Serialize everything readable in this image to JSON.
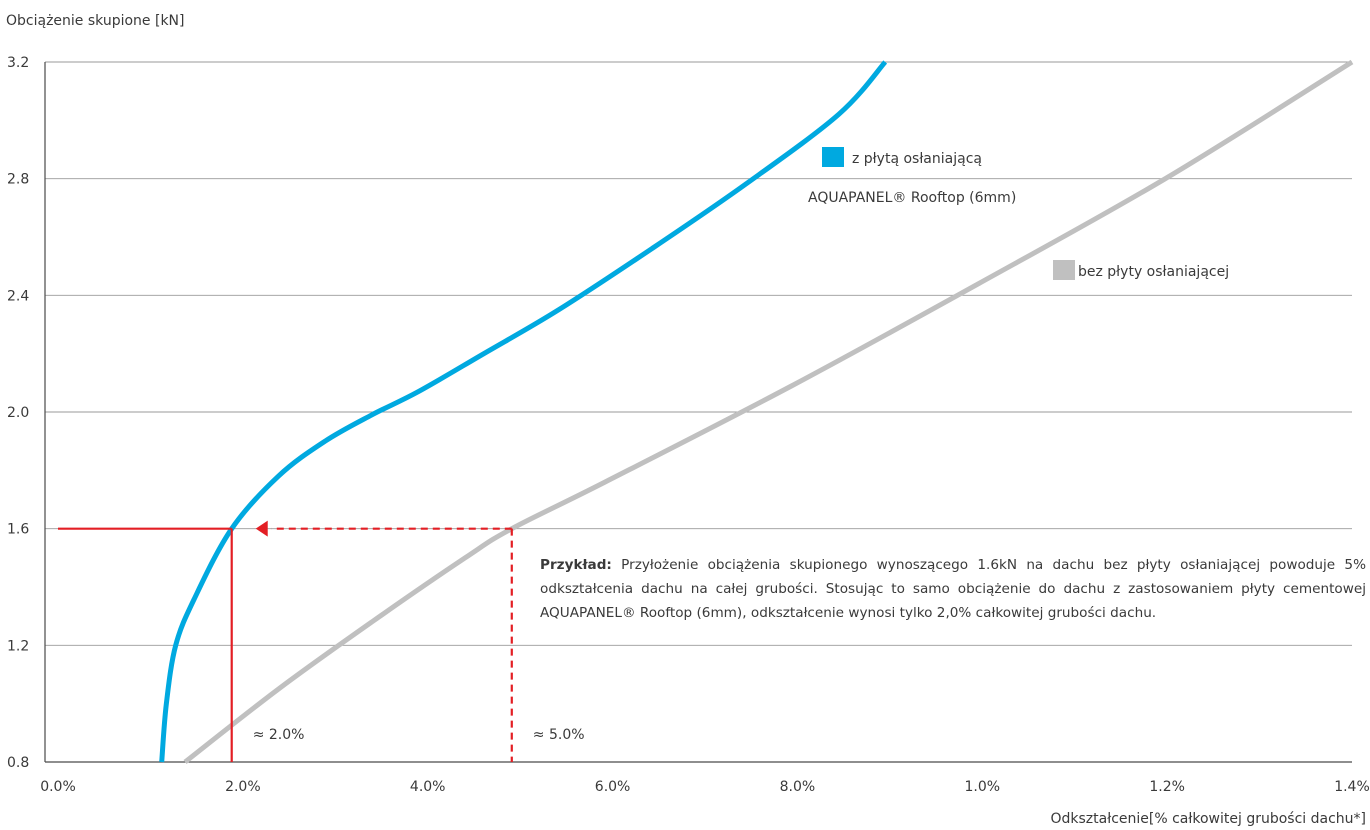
{
  "chart_data": {
    "type": "line",
    "ylabel": "Obciążenie skupione [kN]",
    "xlabel": "Odkształcenie[% całkowitej grubości dachu*]",
    "xticks": [
      "0.0%",
      "2.0%",
      "4.0%",
      "6.0%",
      "8.0%",
      "1.0%",
      "1.2%",
      "1.4%"
    ],
    "yticks": [
      "0.8",
      "1.2",
      "1.6",
      "2.0",
      "2.4",
      "2.8",
      "3.2"
    ],
    "ylim": [
      0.8,
      3.2
    ],
    "xlim": [
      0,
      14
    ],
    "grid": "horizontal",
    "series": [
      {
        "name": "z płytą osłaniającą",
        "name_line2": "AQUAPANEL® Rooftop (6mm)",
        "color": "#00a9e0",
        "x": [
          1.25,
          1.3,
          1.4,
          1.6,
          2.0,
          2.5,
          3.0,
          3.5,
          4.0,
          4.7,
          5.5,
          6.5,
          7.5,
          8.5,
          9.0
        ],
        "y": [
          0.8,
          1.0,
          1.2,
          1.36,
          1.6,
          1.78,
          1.9,
          1.99,
          2.07,
          2.2,
          2.35,
          2.56,
          2.78,
          3.02,
          3.2
        ]
      },
      {
        "name": "bez płyty osłaniającej",
        "color": "#c0c0c0",
        "x": [
          1.5,
          2.5,
          3.5,
          4.5,
          5.0,
          6.0,
          8.0,
          10.0,
          12.0,
          14.0
        ],
        "y": [
          0.8,
          1.05,
          1.28,
          1.5,
          1.6,
          1.76,
          2.09,
          2.44,
          2.8,
          3.2
        ]
      }
    ],
    "annotations": [
      {
        "text": "≈ 2.0%",
        "x": 2.0,
        "y": 1.6,
        "color": "#e31e24",
        "style": "solid"
      },
      {
        "text": "≈ 5.0%",
        "x": 5.0,
        "y": 1.6,
        "color": "#e31e24",
        "style": "dashed"
      }
    ],
    "note": {
      "lead": "Przykład:",
      "text": " Przyłożenie obciążenia skupionego wynoszącego 1.6kN na dachu bez płyty osłaniającej powoduje 5% odkształcenia dachu na całej grubości. Stosując to samo obciążenie  do dachu z zastosowaniem płyty cementowej AQUAPANEL® Rooftop (6mm), odkształcenie wynosi tylko 2,0% całkowitej grubości dachu."
    }
  }
}
